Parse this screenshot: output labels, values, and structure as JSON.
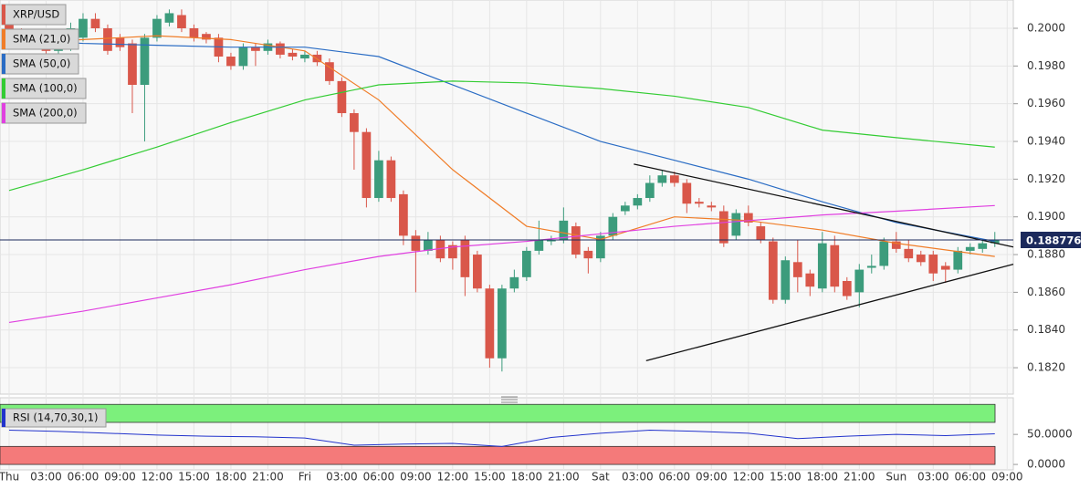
{
  "chart_data": {
    "type": "candlestick",
    "title": "XRP/USD",
    "xlim": [
      -0.74,
      81.5
    ],
    "ylim": [
      0.1806,
      0.2015
    ],
    "xticks": [
      {
        "value": 0,
        "label": "Thu"
      },
      {
        "value": 3,
        "label": "03:00"
      },
      {
        "value": 6,
        "label": "06:00"
      },
      {
        "value": 9,
        "label": "09:00"
      },
      {
        "value": 12,
        "label": "12:00"
      },
      {
        "value": 15,
        "label": "15:00"
      },
      {
        "value": 18,
        "label": "18:00"
      },
      {
        "value": 21,
        "label": "21:00"
      },
      {
        "value": 24,
        "label": "Fri"
      },
      {
        "value": 27,
        "label": "03:00"
      },
      {
        "value": 30,
        "label": "06:00"
      },
      {
        "value": 33,
        "label": "09:00"
      },
      {
        "value": 36,
        "label": "12:00"
      },
      {
        "value": 39,
        "label": "15:00"
      },
      {
        "value": 42,
        "label": "18:00"
      },
      {
        "value": 45,
        "label": "21:00"
      },
      {
        "value": 48,
        "label": "Sat"
      },
      {
        "value": 51,
        "label": "03:00"
      },
      {
        "value": 54,
        "label": "06:00"
      },
      {
        "value": 57,
        "label": "09:00"
      },
      {
        "value": 60,
        "label": "12:00"
      },
      {
        "value": 63,
        "label": "15:00"
      },
      {
        "value": 66,
        "label": "18:00"
      },
      {
        "value": 69,
        "label": "21:00"
      },
      {
        "value": 72,
        "label": "Sun"
      },
      {
        "value": 75,
        "label": "03:00"
      },
      {
        "value": 78,
        "label": "06:00"
      },
      {
        "value": 81,
        "label": "09:00"
      }
    ],
    "yticks": [
      {
        "value": 0.182,
        "label": "0.1820"
      },
      {
        "value": 0.184,
        "label": "0.1840"
      },
      {
        "value": 0.186,
        "label": "0.1860"
      },
      {
        "value": 0.188,
        "label": "0.1880"
      },
      {
        "value": 0.19,
        "label": "0.1900"
      },
      {
        "value": 0.192,
        "label": "0.1920"
      },
      {
        "value": 0.194,
        "label": "0.1940"
      },
      {
        "value": 0.196,
        "label": "0.1960"
      },
      {
        "value": 0.198,
        "label": "0.1980"
      },
      {
        "value": 0.2,
        "label": "0.2000"
      }
    ],
    "grid": true,
    "up_color": "#3c9c7c",
    "down_color": "#d9574a",
    "x": [
      0,
      1,
      2,
      3,
      4,
      5,
      6,
      7,
      8,
      9,
      10,
      11,
      12,
      13,
      14,
      15,
      16,
      17,
      18,
      19,
      20,
      21,
      22,
      23,
      24,
      25,
      26,
      27,
      28,
      29,
      30,
      31,
      32,
      33,
      34,
      35,
      36,
      37,
      38,
      39,
      40,
      41,
      42,
      43,
      44,
      45,
      46,
      47,
      48,
      49,
      50,
      51,
      52,
      53,
      54,
      55,
      56,
      57,
      58,
      59,
      60,
      61,
      62,
      63,
      64,
      65,
      66,
      67,
      68,
      69,
      70,
      71,
      72,
      73,
      74,
      75,
      76,
      77,
      78,
      79,
      80
    ],
    "open": [
      0.201,
      0.1998,
      0.1995,
      0.199,
      0.1988,
      0.199,
      0.1995,
      0.2005,
      0.2,
      0.1995,
      0.1992,
      0.197,
      0.1995,
      0.2003,
      0.2007,
      0.2,
      0.1997,
      0.1995,
      0.1985,
      0.198,
      0.199,
      0.1988,
      0.1992,
      0.1987,
      0.1984,
      0.1986,
      0.1982,
      0.1972,
      0.1955,
      0.1945,
      0.191,
      0.193,
      0.1912,
      0.189,
      0.1882,
      0.1888,
      0.1885,
      0.1888,
      0.188,
      0.1862,
      0.1825,
      0.1862,
      0.1868,
      0.1882,
      0.1887,
      0.1888,
      0.1895,
      0.1882,
      0.1878,
      0.189,
      0.1903,
      0.1906,
      0.191,
      0.1918,
      0.1922,
      0.1918,
      0.1908,
      0.1906,
      0.1903,
      0.189,
      0.1902,
      0.1895,
      0.1887,
      0.1856,
      0.1876,
      0.187,
      0.1862,
      0.1885,
      0.1866,
      0.186,
      0.1873,
      0.1874,
      0.1887,
      0.1883,
      0.188,
      0.188,
      0.1874,
      0.1872,
      0.1882,
      0.1883,
      0.1886
    ],
    "high": [
      0.2012,
      0.2,
      0.1997,
      0.1992,
      0.1994,
      0.2003,
      0.2008,
      0.2008,
      0.2002,
      0.1997,
      0.1994,
      0.1997,
      0.2007,
      0.201,
      0.201,
      0.2002,
      0.1998,
      0.1997,
      0.1987,
      0.1992,
      0.1992,
      0.1994,
      0.1993,
      0.1989,
      0.1988,
      0.1988,
      0.1984,
      0.1974,
      0.1957,
      0.1947,
      0.1935,
      0.1932,
      0.1914,
      0.1893,
      0.1892,
      0.189,
      0.1887,
      0.189,
      0.1882,
      0.1864,
      0.1864,
      0.1872,
      0.1884,
      0.1898,
      0.189,
      0.1905,
      0.1897,
      0.1884,
      0.1892,
      0.1902,
      0.1908,
      0.1912,
      0.1922,
      0.1925,
      0.1924,
      0.192,
      0.191,
      0.1908,
      0.1906,
      0.1904,
      0.1906,
      0.1897,
      0.1889,
      0.1879,
      0.1888,
      0.1872,
      0.1892,
      0.189,
      0.1868,
      0.1875,
      0.188,
      0.1889,
      0.1892,
      0.1888,
      0.1882,
      0.1882,
      0.1876,
      0.1884,
      0.1886,
      0.1888,
      0.1892
    ],
    "low": [
      0.1996,
      0.1993,
      0.1991,
      0.1986,
      0.1986,
      0.1988,
      0.1993,
      0.1998,
      0.1986,
      0.1988,
      0.1955,
      0.194,
      0.1993,
      0.2001,
      0.1998,
      0.1993,
      0.1992,
      0.1982,
      0.1978,
      0.1978,
      0.198,
      0.1986,
      0.1984,
      0.1983,
      0.1982,
      0.198,
      0.197,
      0.1953,
      0.1925,
      0.1905,
      0.1908,
      0.1908,
      0.1885,
      0.186,
      0.188,
      0.1876,
      0.1872,
      0.1858,
      0.186,
      0.182,
      0.1818,
      0.186,
      0.1866,
      0.188,
      0.1885,
      0.1886,
      0.1878,
      0.187,
      0.1876,
      0.1888,
      0.1901,
      0.1904,
      0.1908,
      0.1916,
      0.1916,
      0.1902,
      0.1905,
      0.1903,
      0.1884,
      0.1888,
      0.1895,
      0.1886,
      0.1854,
      0.1854,
      0.186,
      0.1858,
      0.186,
      0.186,
      0.1856,
      0.1852,
      0.187,
      0.1872,
      0.1881,
      0.1876,
      0.1874,
      0.1866,
      0.1865,
      0.187,
      0.188,
      0.1881,
      0.1884
    ],
    "close": [
      0.1998,
      0.1995,
      0.1993,
      0.1988,
      0.1992,
      0.2,
      0.2005,
      0.2,
      0.1988,
      0.199,
      0.197,
      0.1995,
      0.2005,
      0.2008,
      0.2,
      0.1995,
      0.1994,
      0.1985,
      0.198,
      0.199,
      0.1988,
      0.1992,
      0.1986,
      0.1985,
      0.1986,
      0.1982,
      0.1972,
      0.1955,
      0.1945,
      0.191,
      0.193,
      0.191,
      0.189,
      0.1882,
      0.1888,
      0.1878,
      0.1878,
      0.1868,
      0.1862,
      0.1825,
      0.1862,
      0.1868,
      0.1882,
      0.1888,
      0.1888,
      0.1898,
      0.188,
      0.1878,
      0.189,
      0.19,
      0.1906,
      0.191,
      0.1918,
      0.1922,
      0.1918,
      0.1907,
      0.1907,
      0.1905,
      0.1886,
      0.1902,
      0.1897,
      0.1888,
      0.1856,
      0.1877,
      0.1868,
      0.1863,
      0.1886,
      0.1863,
      0.1858,
      0.1872,
      0.1874,
      0.1887,
      0.1883,
      0.1878,
      0.1876,
      0.187,
      0.1872,
      0.1882,
      0.1884,
      0.1886,
      0.1888
    ],
    "series": [
      {
        "name": "SMA (21,0)",
        "color": "#f07d28",
        "x": [
          0,
          6,
          12,
          18,
          24,
          30,
          36,
          42,
          48,
          54,
          60,
          66,
          72,
          80
        ],
        "values": [
          0.1992,
          0.1994,
          0.1996,
          0.1994,
          0.1988,
          0.1962,
          0.1925,
          0.1895,
          0.1888,
          0.19,
          0.1898,
          0.1893,
          0.1886,
          0.1879
        ]
      },
      {
        "name": "SMA (50,0)",
        "color": "#2a6cc4",
        "x": [
          0,
          6,
          12,
          18,
          24,
          30,
          36,
          42,
          48,
          54,
          60,
          66,
          72,
          80
        ],
        "values": [
          0.1994,
          0.1992,
          0.1991,
          0.199,
          0.199,
          0.1985,
          0.197,
          0.1955,
          0.194,
          0.193,
          0.192,
          0.1908,
          0.1897,
          0.1887
        ]
      },
      {
        "name": "SMA (100,0)",
        "color": "#33cc33",
        "x": [
          0,
          6,
          12,
          18,
          24,
          30,
          36,
          42,
          48,
          54,
          60,
          66,
          72,
          80
        ],
        "values": [
          0.1914,
          0.1925,
          0.1937,
          0.195,
          0.1962,
          0.197,
          0.1972,
          0.1971,
          0.1968,
          0.1964,
          0.1958,
          0.1946,
          0.1942,
          0.1937
        ]
      },
      {
        "name": "SMA (200,0)",
        "color": "#e040e0",
        "x": [
          0,
          6,
          12,
          18,
          24,
          30,
          36,
          42,
          48,
          54,
          60,
          66,
          72,
          80
        ],
        "values": [
          0.1844,
          0.185,
          0.1857,
          0.1864,
          0.1872,
          0.1879,
          0.1884,
          0.1887,
          0.1891,
          0.1895,
          0.1898,
          0.1901,
          0.1903,
          0.1906
        ]
      }
    ],
    "trendlines": [
      {
        "color": "#111111",
        "x": [
          50.7,
          81.5
        ],
        "values": [
          0.1928,
          0.1884
        ]
      },
      {
        "color": "#111111",
        "x": [
          51.7,
          81.5
        ],
        "values": [
          0.18237,
          0.18749
        ]
      }
    ],
    "last_price": 0.188776,
    "last_price_color": "#1c2a5c",
    "rsi": {
      "name": "RSI (14,70,30,1)",
      "color": "#2233cc",
      "ylim": [
        -9,
        111
      ],
      "yticks": [
        {
          "value": 0,
          "label": "0.0000"
        },
        {
          "value": 50,
          "label": "50.0000"
        }
      ],
      "bands": [
        {
          "range": [
            70,
            100
          ],
          "color": "#7cf07c"
        },
        {
          "range": [
            0,
            30
          ],
          "color": "#f47a7a"
        }
      ],
      "x": [
        0,
        4,
        8,
        12,
        16,
        20,
        24,
        28,
        32,
        36,
        40,
        44,
        48,
        52,
        56,
        60,
        64,
        68,
        72,
        76,
        80
      ],
      "values": [
        57,
        55,
        52,
        49,
        47,
        46,
        44,
        32,
        34,
        35,
        30,
        45,
        52,
        57,
        55,
        52,
        43,
        47,
        50,
        48,
        51
      ]
    }
  }
}
